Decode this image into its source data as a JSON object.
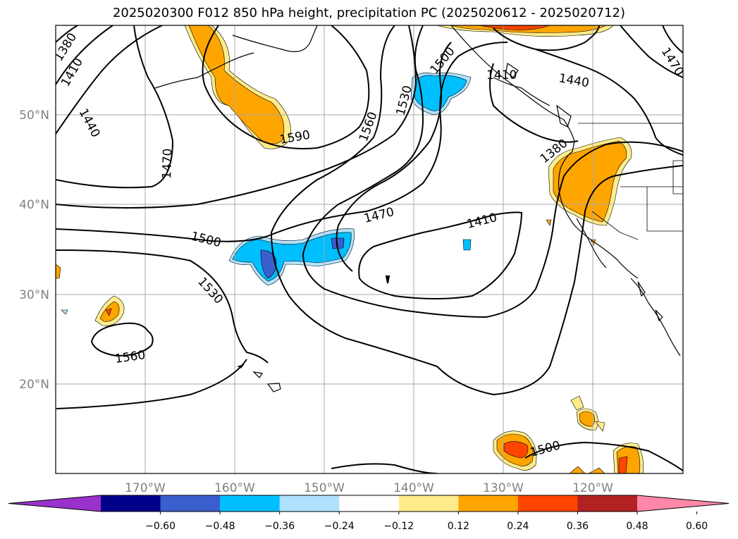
{
  "title": "2025020300 F012 850 hPa height, precipitation PC (2025020612 - 2025020712)",
  "lon_ticks": [
    "170°W",
    "160°W",
    "150°W",
    "140°W",
    "130°W",
    "120°W"
  ],
  "lat_ticks": [
    "50°N",
    "40°N",
    "30°N",
    "20°N"
  ],
  "colorbar": {
    "colors": [
      "#9932cc",
      "#00008b",
      "#3a5fcd",
      "#00bfff",
      "#b0e2ff",
      "#ffffff",
      "#ffec8b",
      "#ffa500",
      "#ff4500",
      "#b22222",
      "#ff88aa"
    ],
    "labels": [
      "−0.60",
      "−0.48",
      "−0.36",
      "−0.24",
      "−0.12",
      "0.12",
      "0.24",
      "0.36",
      "0.48",
      "0.60"
    ]
  },
  "contour_labels": [
    "1380",
    "1410",
    "1440",
    "1470",
    "1500",
    "1530",
    "1560",
    "1590"
  ]
}
